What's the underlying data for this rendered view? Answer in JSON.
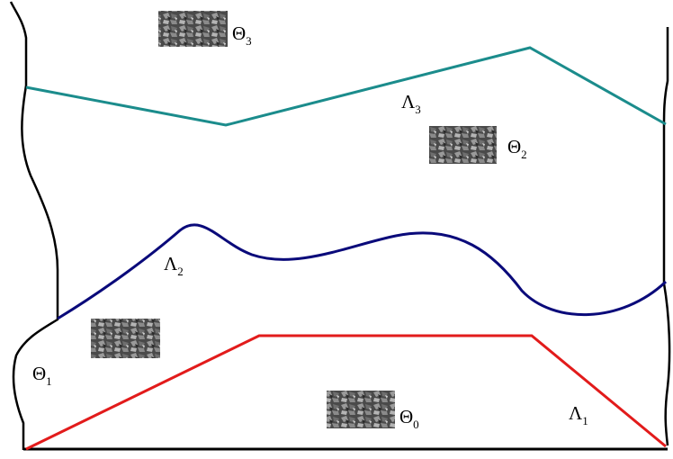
{
  "diagram": {
    "regions": [
      {
        "id": "theta3",
        "base": "Θ",
        "sub": "3",
        "texture": "rock"
      },
      {
        "id": "theta2",
        "base": "Θ",
        "sub": "2",
        "texture": "rock"
      },
      {
        "id": "theta1",
        "base": "Θ",
        "sub": "1",
        "texture": "rock"
      },
      {
        "id": "theta0",
        "base": "Θ",
        "sub": "0",
        "texture": "rock"
      }
    ],
    "interfaces": [
      {
        "id": "lambda3",
        "base": "Λ",
        "sub": "3",
        "color": "#1b8c8c",
        "shape": "polyline"
      },
      {
        "id": "lambda2",
        "base": "Λ",
        "sub": "2",
        "color": "#0a0a7a",
        "shape": "curve"
      },
      {
        "id": "lambda1",
        "base": "Λ",
        "sub": "1",
        "color": "#e21b1b",
        "shape": "trapezoid"
      }
    ],
    "boundary_color": "#000000"
  }
}
